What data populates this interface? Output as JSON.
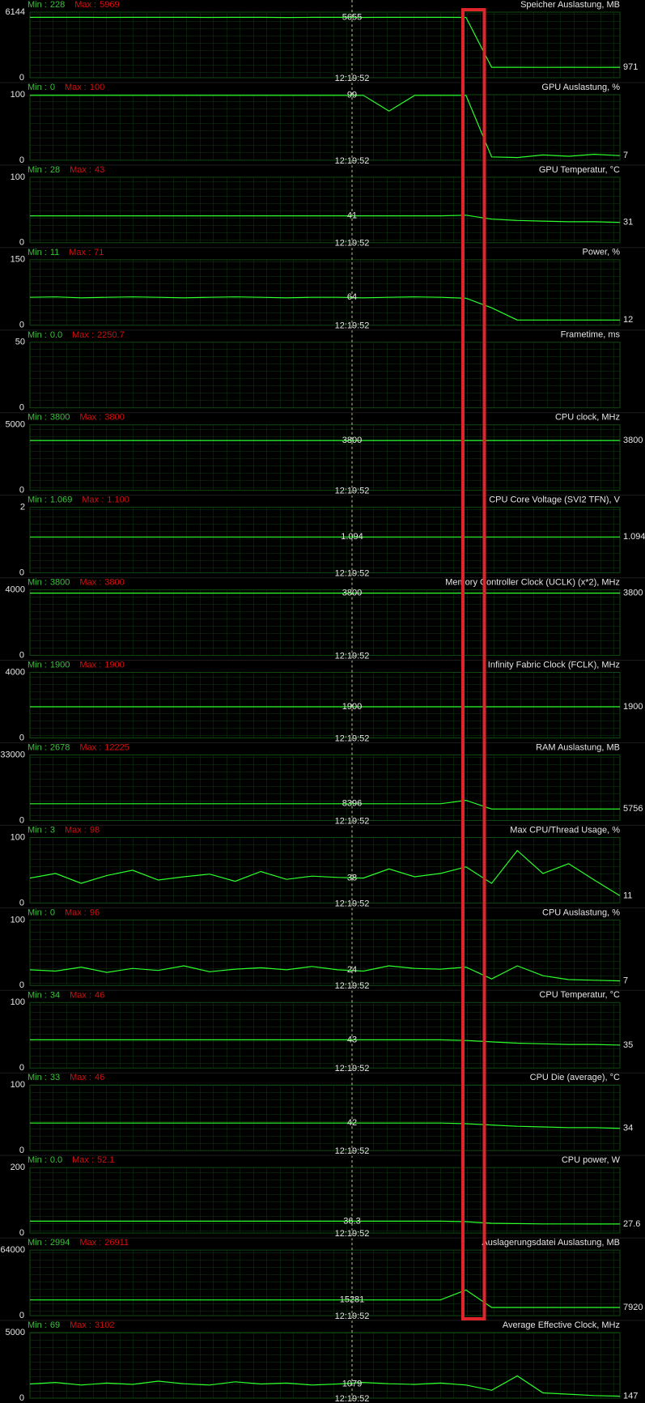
{
  "labels": {
    "min": "Min :",
    "max": "Max :"
  },
  "panels": [
    {
      "title": "Speicher Auslastung, MB",
      "min": 228,
      "max": 5969,
      "ymax": 6144,
      "ymin": 0,
      "cursor_value": 5655,
      "cursor_time": "12:19:52",
      "current": 971,
      "trace": [
        5655,
        5660,
        5655,
        5650,
        5655,
        5660,
        5655,
        5650,
        5655,
        5660,
        5640,
        5655,
        5655,
        5650,
        5655,
        5660,
        5660,
        5650,
        971,
        975,
        968,
        972,
        970,
        971
      ]
    },
    {
      "title": "GPU Auslastung, %",
      "min": 0,
      "max": 100,
      "ymax": 100,
      "ymin": 0,
      "cursor_value": 99,
      "cursor_time": "12:19:52",
      "current": 7,
      "trace": [
        99,
        99,
        99,
        99,
        99,
        99,
        99,
        99,
        99,
        99,
        99,
        99,
        99,
        99,
        75,
        99,
        99,
        99,
        5,
        4,
        8,
        6,
        9,
        7
      ]
    },
    {
      "title": "GPU Temperatur, °C",
      "min": 28,
      "max": 43,
      "ymax": 100,
      "ymin": 0,
      "cursor_value": 41,
      "cursor_time": "12:19:52",
      "current": 31,
      "trace": [
        41,
        41,
        41,
        41,
        41,
        41,
        41,
        41,
        41,
        41,
        41,
        41,
        41,
        41,
        41,
        41,
        41,
        42,
        36,
        34,
        33,
        32,
        32,
        31
      ]
    },
    {
      "title": "Power, %",
      "min": 11,
      "max": 71,
      "ymax": 150,
      "ymin": 0,
      "cursor_value": 64,
      "cursor_time": "12:19:52",
      "current": 12,
      "trace": [
        64,
        65,
        63,
        64,
        65,
        64,
        63,
        64,
        65,
        64,
        63,
        64,
        64,
        63,
        64,
        65,
        64,
        62,
        40,
        12,
        12,
        12,
        12,
        12
      ]
    },
    {
      "title": "Frametime, ms",
      "min": "0.0",
      "max": "2250.7",
      "ymax": 50,
      "ymin": 0,
      "trace": []
    },
    {
      "title": "CPU clock, MHz",
      "min": 3800,
      "max": 3800,
      "ymax": 5000,
      "ymin": 0,
      "cursor_value": 3800,
      "cursor_time": "12:19:52",
      "current": 3800,
      "trace": [
        3800,
        3800,
        3800,
        3800,
        3800,
        3800,
        3800,
        3800,
        3800,
        3800,
        3800,
        3800,
        3800,
        3800,
        3800,
        3800,
        3800,
        3800,
        3800,
        3800,
        3800,
        3800,
        3800,
        3800
      ]
    },
    {
      "title": "CPU Core Voltage (SVI2 TFN), V",
      "min": 1.069,
      "max": "1.100",
      "ymax": 2,
      "ymin": 0,
      "cursor_value": 1.094,
      "cursor_time": "12:19:52",
      "current": 1.094,
      "trace": [
        1.094,
        1.094,
        1.094,
        1.094,
        1.094,
        1.094,
        1.094,
        1.094,
        1.094,
        1.094,
        1.094,
        1.094,
        1.094,
        1.094,
        1.094,
        1.094,
        1.094,
        1.094,
        1.094,
        1.094,
        1.094,
        1.094,
        1.094,
        1.094
      ]
    },
    {
      "title": "Memory Controller Clock (UCLK) (x*2), MHz",
      "min": 3800,
      "max": 3800,
      "ymax": 4000,
      "ymin": 0,
      "cursor_value": 3800,
      "cursor_time": "12:19:52",
      "current": 3800,
      "trace": [
        3800,
        3800,
        3800,
        3800,
        3800,
        3800,
        3800,
        3800,
        3800,
        3800,
        3800,
        3800,
        3800,
        3800,
        3800,
        3800,
        3800,
        3800,
        3800,
        3800,
        3800,
        3800,
        3800,
        3800
      ]
    },
    {
      "title": "Infinity Fabric Clock (FCLK), MHz",
      "min": 1900,
      "max": 1900,
      "ymax": 4000,
      "ymin": 0,
      "cursor_value": 1900,
      "cursor_time": "12:19:52",
      "current": 1900,
      "trace": [
        1900,
        1900,
        1900,
        1900,
        1900,
        1900,
        1900,
        1900,
        1900,
        1900,
        1900,
        1900,
        1900,
        1900,
        1900,
        1900,
        1900,
        1900,
        1900,
        1900,
        1900,
        1900,
        1900,
        1900
      ]
    },
    {
      "title": "RAM Auslastung, MB",
      "min": 2678,
      "max": 12225,
      "ymax": 33000,
      "ymin": 0,
      "cursor_value": 8396,
      "cursor_time": "12:19:52",
      "current": 5756,
      "trace": [
        8396,
        8396,
        8396,
        8396,
        8396,
        8396,
        8396,
        8396,
        8396,
        8396,
        8396,
        8396,
        8396,
        8396,
        8396,
        8396,
        8396,
        10100,
        5756,
        5756,
        5756,
        5756,
        5756,
        5756
      ]
    },
    {
      "title": "Max CPU/Thread Usage, %",
      "min": 3,
      "max": 98,
      "ymax": 100,
      "ymin": 0,
      "cursor_value": 38,
      "cursor_time": "12:19:52",
      "current": 11,
      "trace": [
        38,
        45,
        30,
        42,
        50,
        35,
        40,
        44,
        33,
        48,
        36,
        41,
        39,
        38,
        52,
        40,
        45,
        55,
        30,
        80,
        45,
        60,
        35,
        11
      ]
    },
    {
      "title": "CPU Auslastung, %",
      "min": 0,
      "max": 96,
      "ymax": 100,
      "ymin": 0,
      "cursor_value": 24,
      "cursor_time": "12:19:52",
      "current": 7,
      "trace": [
        24,
        22,
        28,
        20,
        26,
        23,
        30,
        21,
        25,
        27,
        24,
        29,
        24,
        22,
        30,
        26,
        25,
        28,
        10,
        30,
        15,
        9,
        8,
        7
      ]
    },
    {
      "title": "CPU Temperatur, °C",
      "min": 34,
      "max": 46,
      "ymax": 100,
      "ymin": 0,
      "cursor_value": 43,
      "cursor_time": "12:19:52",
      "current": 35,
      "trace": [
        43,
        43,
        43,
        43,
        43,
        43,
        43,
        43,
        43,
        43,
        43,
        43,
        43,
        43,
        43,
        43,
        43,
        42,
        40,
        38,
        37,
        36,
        36,
        35
      ]
    },
    {
      "title": "CPU Die (average), °C",
      "min": 33,
      "max": 46,
      "ymax": 100,
      "ymin": 0,
      "cursor_value": 42,
      "cursor_time": "12:19:52",
      "current": 34,
      "trace": [
        42,
        42,
        42,
        42,
        42,
        42,
        42,
        42,
        42,
        42,
        42,
        42,
        42,
        42,
        42,
        42,
        42,
        41,
        39,
        37,
        36,
        35,
        35,
        34
      ]
    },
    {
      "title": "CPU power, W",
      "min": "0.0",
      "max": 52.1,
      "ymax": 200,
      "ymin": 0,
      "cursor_value": 36.3,
      "cursor_time": "12:19:52",
      "current": 27.6,
      "trace": [
        36.3,
        36.3,
        36.3,
        36.3,
        36.3,
        36.3,
        36.3,
        36.3,
        36.3,
        36.3,
        36.3,
        36.3,
        36.3,
        36.3,
        36.3,
        36.3,
        36.3,
        35,
        30,
        29,
        28,
        28,
        27.6,
        27.6
      ]
    },
    {
      "title": "Auslagerungsdatei Auslastung, MB",
      "min": 2994,
      "max": 26911,
      "ymax": 64000,
      "ymin": 0,
      "cursor_value": 15281,
      "cursor_time": "12:19:52",
      "current": 7920,
      "trace": [
        15281,
        15281,
        15281,
        15281,
        15281,
        15281,
        15281,
        15281,
        15281,
        15281,
        15281,
        15281,
        15281,
        15281,
        15281,
        15281,
        15281,
        25000,
        7920,
        7920,
        7920,
        7920,
        7920,
        7920
      ]
    },
    {
      "title": "Average Effective Clock, MHz",
      "min": 69,
      "max": 3102,
      "ymax": 5000,
      "ymin": 0,
      "cursor_value": 1079,
      "cursor_time": "12:19:52",
      "current": 147,
      "trace": [
        1079,
        1200,
        1000,
        1150,
        1050,
        1300,
        1100,
        1000,
        1250,
        1080,
        1150,
        1000,
        1079,
        1200,
        1100,
        1050,
        1150,
        1000,
        600,
        1700,
        400,
        300,
        200,
        147
      ]
    }
  ]
}
